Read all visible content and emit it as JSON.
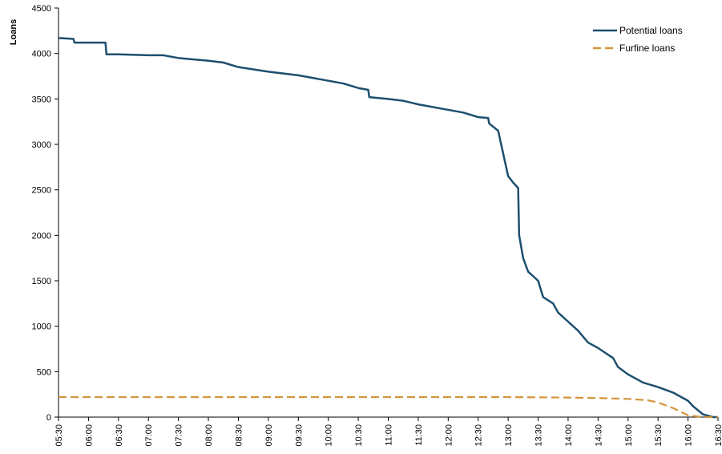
{
  "chart_data": {
    "type": "line",
    "y_label": "Loans",
    "ylim": [
      0,
      4500
    ],
    "yticks": [
      0,
      500,
      1000,
      1500,
      2000,
      2500,
      3000,
      3500,
      4000,
      4500
    ],
    "xlim": [
      "05:30",
      "16:30"
    ],
    "xticks": [
      "05:30",
      "06:00",
      "06:30",
      "07:00",
      "07:30",
      "08:00",
      "08:30",
      "09:00",
      "09:30",
      "10:00",
      "10:30",
      "11:00",
      "11:30",
      "12:00",
      "12:30",
      "13:00",
      "13:30",
      "14:00",
      "14:30",
      "15:00",
      "15:30",
      "16:00",
      "16:30"
    ],
    "legend": "top-right",
    "series": [
      {
        "name": "Potential loans",
        "color": "#1e4f6e",
        "style": "solid",
        "x": [
          "05:30",
          "05:45",
          "05:46",
          "06:17",
          "06:18",
          "06:30",
          "07:00",
          "07:15",
          "07:30",
          "08:00",
          "08:15",
          "08:30",
          "09:00",
          "09:30",
          "10:00",
          "10:15",
          "10:30",
          "10:40",
          "10:41",
          "11:00",
          "11:15",
          "11:30",
          "12:00",
          "12:15",
          "12:30",
          "12:40",
          "12:41",
          "12:50",
          "12:55",
          "13:00",
          "13:05",
          "13:10",
          "13:11",
          "13:15",
          "13:20",
          "13:30",
          "13:35",
          "13:45",
          "13:50",
          "14:00",
          "14:10",
          "14:20",
          "14:30",
          "14:45",
          "14:50",
          "15:00",
          "15:15",
          "15:30",
          "15:45",
          "16:00",
          "16:05",
          "16:15",
          "16:25",
          "16:30"
        ],
        "values": [
          4170,
          4160,
          4120,
          4120,
          3990,
          3990,
          3980,
          3980,
          3950,
          3920,
          3900,
          3850,
          3800,
          3760,
          3700,
          3670,
          3620,
          3600,
          3520,
          3500,
          3480,
          3440,
          3380,
          3350,
          3300,
          3290,
          3230,
          3150,
          2900,
          2650,
          2580,
          2520,
          2000,
          1750,
          1600,
          1500,
          1320,
          1250,
          1150,
          1050,
          950,
          820,
          760,
          650,
          550,
          470,
          380,
          330,
          270,
          180,
          120,
          30,
          0,
          0
        ]
      },
      {
        "name": "Furfine loans",
        "color": "#d4943a",
        "style": "dashed",
        "x": [
          "05:30",
          "07:00",
          "09:00",
          "11:00",
          "13:00",
          "14:00",
          "14:30",
          "15:00",
          "15:20",
          "15:30",
          "15:45",
          "16:00",
          "16:15",
          "16:30"
        ],
        "values": [
          220,
          220,
          220,
          220,
          220,
          215,
          210,
          200,
          185,
          160,
          100,
          20,
          0,
          0
        ]
      }
    ]
  }
}
